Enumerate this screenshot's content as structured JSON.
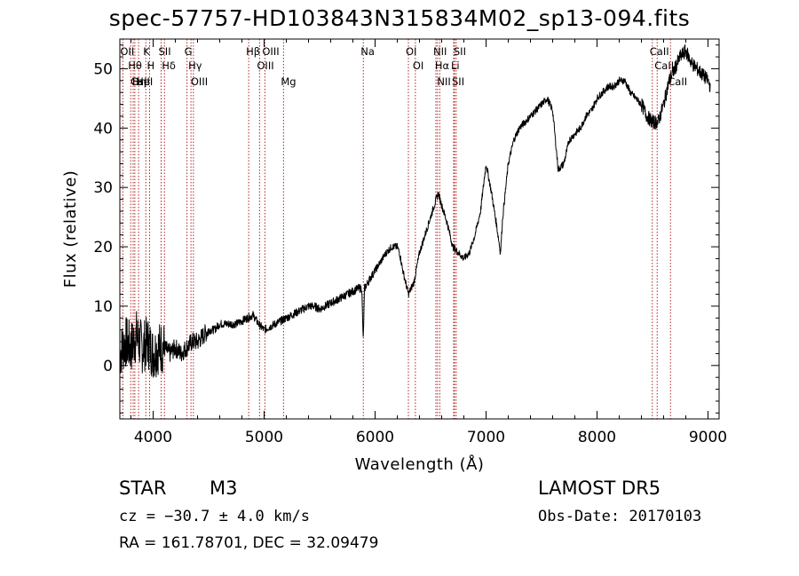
{
  "title": "spec-57757-HD103843N315834M02_sp13-094.fits",
  "info": {
    "obj_class": "STAR",
    "subclass": "M3",
    "cz": "cz = −30.7 ± 4.0 km/s",
    "radec": "RA = 161.78701, DEC =  32.09479",
    "survey": "LAMOST  DR5",
    "obs_date": "Obs-Date: 20170103"
  },
  "chart_data": {
    "type": "line",
    "title": "spec-57757-HD103843N315834M02_sp13-094.fits",
    "xlabel": "Wavelength (Å)",
    "ylabel": "Flux (relative)",
    "xlim": [
      3700,
      9100
    ],
    "ylim": [
      -9,
      55
    ],
    "xticks": [
      4000,
      5000,
      6000,
      7000,
      8000,
      9000
    ],
    "yticks": [
      0,
      10,
      20,
      30,
      40,
      50
    ],
    "grid": false,
    "line_color": "#000000",
    "marker_color": "#b22222",
    "series": [
      {
        "x": [
          3700,
          3750,
          3800,
          3850,
          3900,
          3950,
          4000,
          4050,
          4100,
          4150,
          4200,
          4250,
          4300,
          4350,
          4400,
          4450,
          4500,
          4550,
          4600,
          4650,
          4700,
          4750,
          4800,
          4850,
          4900,
          4950,
          5000,
          5050,
          5100,
          5150,
          5200,
          5250,
          5300,
          5350,
          5400,
          5450,
          5500,
          5550,
          5600,
          5650,
          5700,
          5750,
          5800,
          5850,
          5880,
          5893,
          5905,
          5950,
          6000,
          6050,
          6100,
          6150,
          6200,
          6220,
          6250,
          6300,
          6350,
          6400,
          6450,
          6500,
          6550,
          6570,
          6600,
          6650,
          6700,
          6750,
          6800,
          6850,
          6900,
          6950,
          7000,
          7050,
          7100,
          7130,
          7150,
          7200,
          7250,
          7300,
          7350,
          7400,
          7450,
          7500,
          7550,
          7600,
          7650,
          7700,
          7750,
          7800,
          7850,
          7900,
          7950,
          8000,
          8050,
          8100,
          8150,
          8200,
          8250,
          8300,
          8350,
          8400,
          8450,
          8500,
          8550,
          8600,
          8650,
          8700,
          8750,
          8800,
          8850,
          8900,
          8950,
          9000,
          9020
        ],
        "y": [
          2,
          4,
          3,
          5,
          3,
          4,
          2,
          3,
          3,
          2,
          3,
          2,
          3,
          4,
          4,
          5,
          6,
          6,
          7,
          7,
          7,
          7,
          7.5,
          8,
          8.5,
          7,
          6,
          6.5,
          7,
          7.5,
          8,
          8.5,
          9,
          9.5,
          10,
          10,
          9.5,
          10,
          10.5,
          11,
          11.5,
          12,
          12.5,
          13,
          13,
          4,
          13,
          14.5,
          16,
          17.5,
          19,
          20,
          20,
          19,
          16,
          12,
          14,
          19,
          22,
          25,
          28,
          29,
          27,
          24,
          20,
          19,
          18,
          19,
          22,
          26,
          34,
          29,
          23,
          19,
          25,
          34,
          38,
          40,
          41,
          42,
          43,
          44,
          45,
          43,
          33,
          34,
          38,
          39,
          40,
          42,
          43,
          45,
          46,
          47,
          47,
          48,
          48,
          46,
          45,
          44,
          42,
          41,
          41,
          44,
          48,
          50,
          52,
          53,
          51,
          50,
          49,
          48,
          47
        ]
      }
    ],
    "line_markers": [
      {
        "x": 3727,
        "label": "OII"
      },
      {
        "x": 3798,
        "label": "Hθ"
      },
      {
        "x": 3820,
        "label": "CaII"
      },
      {
        "x": 3835,
        "label": "Hη"
      },
      {
        "x": 3869,
        "label": "HeI"
      },
      {
        "x": 3934,
        "label": "K"
      },
      {
        "x": 3968,
        "label": "H"
      },
      {
        "x": 4072,
        "label": "SII"
      },
      {
        "x": 4102,
        "label": "Hδ"
      },
      {
        "x": 4305,
        "label": "G"
      },
      {
        "x": 4341,
        "label": "Hγ"
      },
      {
        "x": 4363,
        "label": "OIII"
      },
      {
        "x": 4861,
        "label": "Hβ"
      },
      {
        "x": 4959,
        "label": "OIII"
      },
      {
        "x": 5007,
        "label": "OIII"
      },
      {
        "x": 5175,
        "label": "Mg"
      },
      {
        "x": 5894,
        "label": "Na"
      },
      {
        "x": 6300,
        "label": "OI"
      },
      {
        "x": 6363,
        "label": "OI"
      },
      {
        "x": 6548,
        "label": "NII"
      },
      {
        "x": 6563,
        "label": "Hα"
      },
      {
        "x": 6583,
        "label": "NII"
      },
      {
        "x": 6708,
        "label": "Li"
      },
      {
        "x": 6716,
        "label": "SII"
      },
      {
        "x": 6731,
        "label": "SII"
      },
      {
        "x": 8498,
        "label": "CaII"
      },
      {
        "x": 8542,
        "label": "CaII"
      },
      {
        "x": 8662,
        "label": "CaII"
      }
    ]
  }
}
